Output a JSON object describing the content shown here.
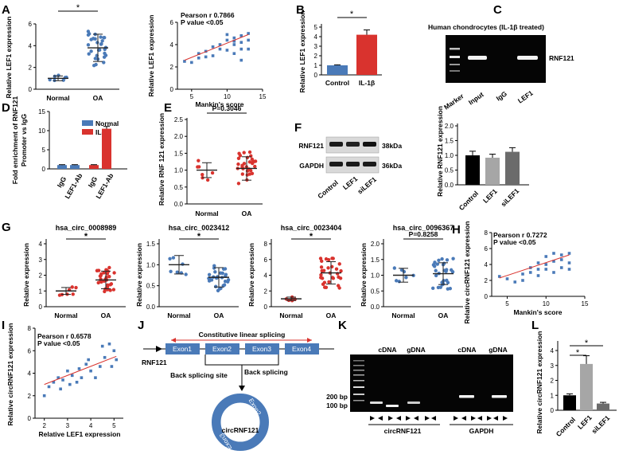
{
  "panels": {
    "A": {
      "letter": "A",
      "dot": {
        "ylabel": "Relative LEF1 expression",
        "ticks": [
          "0",
          "2",
          "4",
          "6"
        ],
        "ymax": 6,
        "groups": [
          "Normal",
          "OA"
        ],
        "means": [
          1.0,
          3.8
        ],
        "sig": "*"
      },
      "scatter": {
        "ylabel": "Relative LEF1 expression",
        "xlabel": "Mankin's score",
        "xticks": [
          "5",
          "10",
          "15"
        ],
        "yticks": [
          "0",
          "2",
          "4",
          "6"
        ],
        "xlim": [
          3,
          15
        ],
        "ylim": [
          0,
          6
        ],
        "stat1": "Pearson r 0.7866",
        "stat2": "P value <0.05"
      }
    },
    "B": {
      "letter": "B",
      "ylabel": "Relative LEF1 expression",
      "ticks": [
        "0",
        "1",
        "2",
        "3",
        "4",
        "5"
      ],
      "ymax": 5,
      "categories": [
        "Control",
        "IL-1β"
      ],
      "values": [
        1.0,
        4.2
      ],
      "errors": [
        0.05,
        0.5
      ],
      "colors": [
        "#4a7ab8",
        "#d9332e"
      ],
      "sig": "*"
    },
    "C": {
      "letter": "C",
      "title": "Human chondrocytes (IL-1β treated)",
      "lanes": [
        "Marker",
        "Input",
        "IgG",
        "LEF1"
      ],
      "band": "RNF121"
    },
    "D": {
      "letter": "D",
      "ylabel1": "Fold enrichment of RNF121",
      "ylabel2": "Promoter vs IgG",
      "ticks": [
        "0",
        "5",
        "10",
        "15"
      ],
      "ymax": 15,
      "legend": [
        "Normal",
        "IL-1β"
      ],
      "colors": [
        "#4a7ab8",
        "#d9332e"
      ],
      "categories": [
        "IgG",
        "LEF1-Ab",
        "IgG",
        "LEF1-Ab"
      ],
      "values": [
        1.0,
        1.0,
        1.0,
        10.5
      ],
      "errors": [
        0.1,
        0.1,
        0.1,
        0.6
      ]
    },
    "E": {
      "letter": "E",
      "ylabel": "Relative RNF 121 expression",
      "ticks": [
        "0.0",
        "0.5",
        "1.0",
        "1.5",
        "2.0",
        "2.5"
      ],
      "ymax": 2.5,
      "groups": [
        "Normal",
        "OA"
      ],
      "means": [
        1.0,
        1.05
      ],
      "stat": "P=0.3046"
    },
    "F": {
      "letter": "F",
      "bands": [
        "RNF121",
        "GAPDH"
      ],
      "sizes": [
        "38kDa",
        "36kDa"
      ],
      "lanes": [
        "Control",
        "LEF1",
        "siLEF1"
      ],
      "bar": {
        "ylabel": "Relative RNF121 expression",
        "ticks": [
          "0.0",
          "0.5",
          "1.0",
          "1.5",
          "2.0"
        ],
        "ymax": 2.0,
        "categories": [
          "Control",
          "LEF1",
          "siLEF1"
        ],
        "values": [
          1.0,
          0.92,
          1.12
        ],
        "errors": [
          0.14,
          0.12,
          0.14
        ],
        "colors": [
          "#000000",
          "#a6a6a6",
          "#6b6b6b"
        ]
      }
    },
    "G": {
      "letter": "G",
      "ylabel": "Relative  expression",
      "groups": [
        "Normal",
        "OA"
      ],
      "plots": [
        {
          "title": "hsa_circ_0008989",
          "ticks": [
            "0",
            "1",
            "2",
            "3",
            "4"
          ],
          "ymax": 4,
          "means": [
            1.0,
            1.7
          ],
          "stat": "*"
        },
        {
          "title": "hsa_circ_0023412",
          "ticks": [
            "0.0",
            "0.5",
            "1.0",
            "1.5"
          ],
          "ymax": 1.5,
          "means": [
            1.0,
            0.7
          ],
          "stat": "*"
        },
        {
          "title": "hsa_circ_0023404",
          "ticks": [
            "0",
            "2",
            "4",
            "6",
            "8"
          ],
          "ymax": 8,
          "means": [
            1.0,
            4.3
          ],
          "stat": "*"
        },
        {
          "title": "hsa_circ_0096367",
          "ticks": [
            "0.0",
            "0.5",
            "1.0",
            "1.5",
            "2.0"
          ],
          "ymax": 2.0,
          "means": [
            1.0,
            1.05
          ],
          "stat": "P=0.8258"
        }
      ]
    },
    "H": {
      "letter": "H",
      "ylabel": "Relative circRNF121 expression",
      "xlabel": "Mankin's score",
      "xticks": [
        "5",
        "10",
        "15"
      ],
      "yticks": [
        "0",
        "2",
        "4",
        "6",
        "8"
      ],
      "xlim": [
        3,
        15
      ],
      "ylim": [
        0,
        8
      ],
      "stat1": "Pearson r 0.7272",
      "stat2": "P value <0.05"
    },
    "I": {
      "letter": "I",
      "ylabel": "Relative circRNF121 expression",
      "xlabel": "Relative LEF1 expression",
      "xticks": [
        "2",
        "3",
        "4",
        "5"
      ],
      "yticks": [
        "0",
        "2",
        "4",
        "6",
        "8"
      ],
      "xlim": [
        1.6,
        5.4
      ],
      "ylim": [
        0,
        8
      ],
      "stat1": "Pearson r 0.6578",
      "stat2": "P value <0.05"
    },
    "J": {
      "letter": "J",
      "linear": "Constitutive linear splicing",
      "exons": [
        "Exon1",
        "Exon2",
        "Exon3",
        "Exon4"
      ],
      "gene": "RNF121",
      "backsite": "Back splicing site",
      "backsplicing": "Back splicing",
      "circ": "circRNF121",
      "circ_exon2": "Exon2",
      "circ_exon3": "Exon3"
    },
    "K": {
      "letter": "K",
      "headers": [
        "cDNA",
        "gDNA",
        "cDNA",
        "gDNA"
      ],
      "markers": [
        "200 bp",
        "100 bp"
      ],
      "groups": [
        "circRNF121",
        "GAPDH"
      ]
    },
    "L": {
      "letter": "L",
      "ylabel": "Relative circRNF121 expression",
      "ticks": [
        "0",
        "1",
        "2",
        "3",
        "4"
      ],
      "ymax": 4,
      "categories": [
        "Control",
        "LEF1",
        "siLEF1"
      ],
      "values": [
        1.0,
        3.1,
        0.45
      ],
      "errors": [
        0.1,
        0.55,
        0.08
      ],
      "colors": [
        "#000000",
        "#a6a6a6",
        "#6b6b6b"
      ],
      "sig": [
        "*",
        "*"
      ]
    }
  }
}
